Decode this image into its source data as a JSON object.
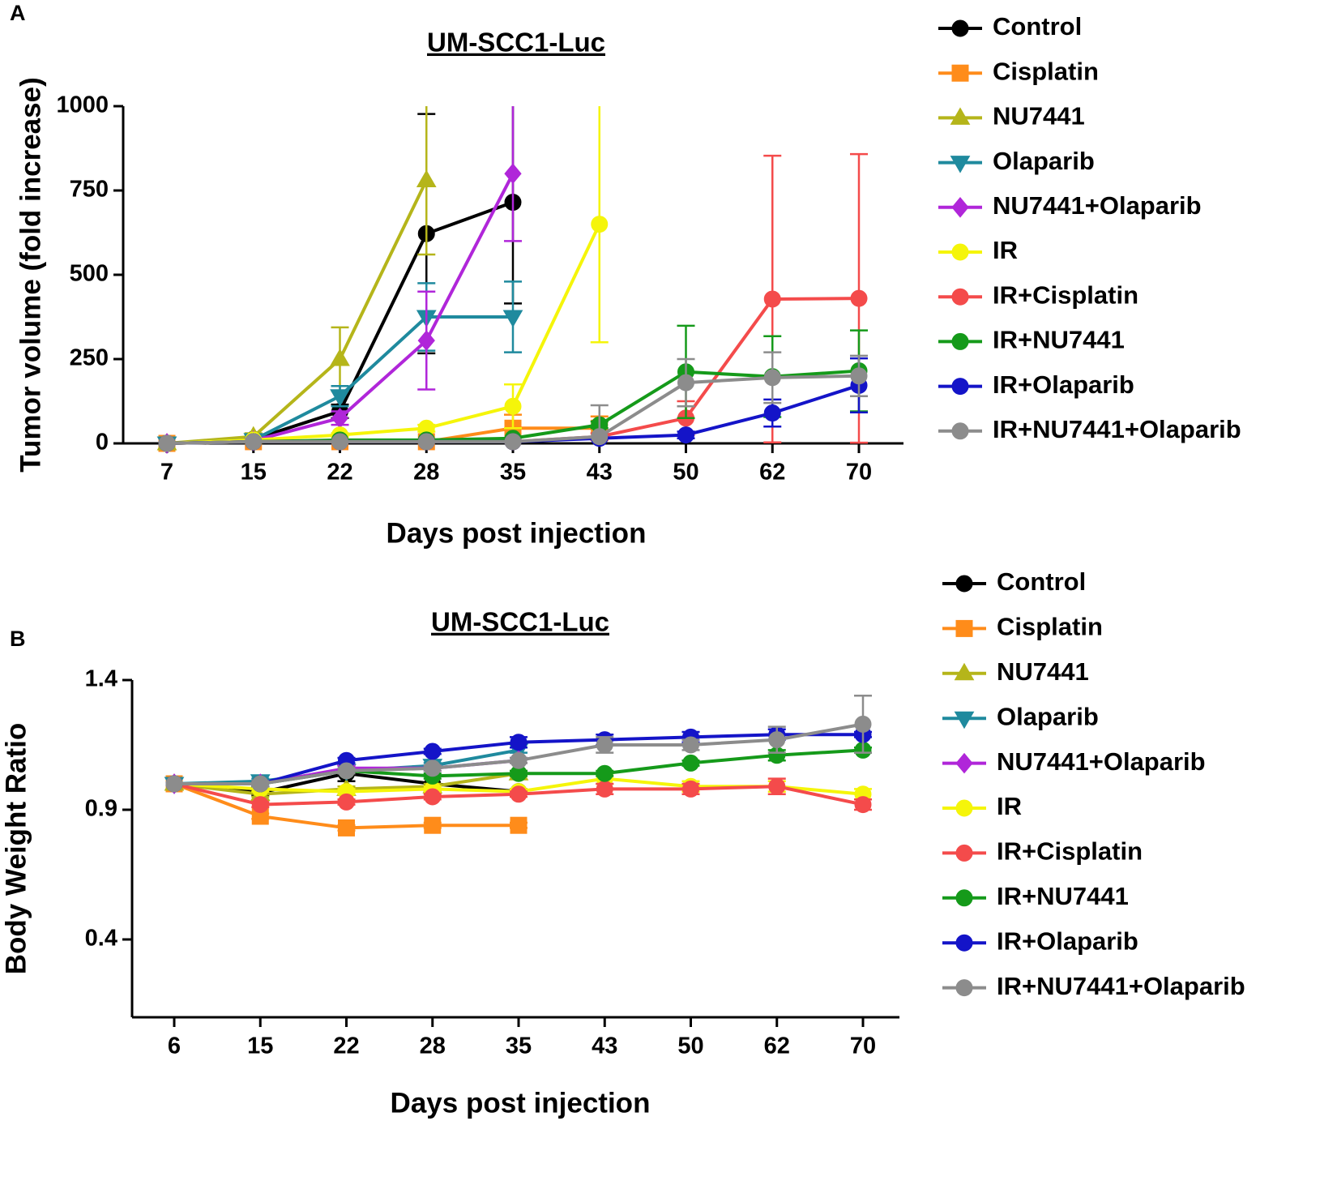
{
  "chart_data": [
    {
      "type": "line",
      "panel": "A",
      "title": "UM-SCC1-Luc",
      "x_label": "Days post injection",
      "y_label": "Tumor volume (fold increase)",
      "categories": [
        "7",
        "15",
        "22",
        "28",
        "35",
        "43",
        "50",
        "62",
        "70"
      ],
      "ylim": [
        0,
        1000
      ],
      "yticks": [
        0,
        250,
        500,
        750,
        1000
      ],
      "legend": "right",
      "series": [
        {
          "name": "Control",
          "color": "#000000",
          "marker": "circle",
          "values": [
            0,
            12,
            95,
            622,
            715,
            null,
            null,
            null,
            null
          ],
          "errors": [
            null,
            5,
            20,
            355,
            300,
            null,
            null,
            null,
            null
          ]
        },
        {
          "name": "Cisplatin",
          "color": "#ff8c1a",
          "marker": "square",
          "values": [
            0,
            5,
            5,
            5,
            45,
            45,
            null,
            null,
            null
          ],
          "errors": [
            null,
            null,
            5,
            5,
            40,
            35,
            null,
            null,
            null
          ]
        },
        {
          "name": "NU7441",
          "color": "#b5b51a",
          "marker": "triangle",
          "values": [
            0,
            20,
            250,
            780,
            null,
            null,
            null,
            null,
            null
          ],
          "errors": [
            null,
            10,
            94,
            220,
            null,
            null,
            null,
            null,
            null
          ]
        },
        {
          "name": "Olaparib",
          "color": "#1f8a9e",
          "marker": "triangle-down",
          "values": [
            0,
            10,
            140,
            375,
            375,
            null,
            null,
            null,
            null
          ],
          "errors": [
            null,
            5,
            30,
            100,
            105,
            null,
            null,
            null,
            null
          ]
        },
        {
          "name": "NU7441+Olaparib",
          "color": "#b026d9",
          "marker": "diamond",
          "values": [
            0,
            8,
            75,
            305,
            800,
            null,
            null,
            null,
            null
          ],
          "errors": [
            null,
            5,
            20,
            145,
            200,
            null,
            null,
            null,
            null
          ]
        },
        {
          "name": "IR",
          "color": "#f5f50a",
          "marker": "circle",
          "values": [
            0,
            10,
            25,
            45,
            110,
            650,
            null,
            null,
            null
          ],
          "errors": [
            null,
            null,
            5,
            10,
            65,
            350,
            null,
            null,
            null
          ]
        },
        {
          "name": "IR+Cisplatin",
          "color": "#f44b4b",
          "marker": "circle",
          "values": [
            0,
            5,
            5,
            5,
            5,
            20,
            75,
            428,
            430
          ],
          "errors": [
            null,
            null,
            null,
            null,
            null,
            10,
            50,
            425,
            428
          ]
        },
        {
          "name": "IR+NU7441",
          "color": "#159a1a",
          "marker": "circle",
          "values": [
            0,
            5,
            10,
            10,
            15,
            55,
            212,
            198,
            215
          ],
          "errors": [
            null,
            null,
            null,
            null,
            null,
            10,
            137,
            120,
            120
          ]
        },
        {
          "name": "IR+Olaparib",
          "color": "#1414c8",
          "marker": "circle",
          "values": [
            0,
            5,
            5,
            5,
            5,
            15,
            25,
            90,
            172
          ],
          "errors": [
            null,
            null,
            null,
            null,
            null,
            null,
            10,
            40,
            80
          ]
        },
        {
          "name": "IR+NU7441+Olaparib",
          "color": "#8c8c8c",
          "marker": "circle",
          "values": [
            0,
            5,
            5,
            5,
            5,
            20,
            180,
            195,
            200
          ],
          "errors": [
            null,
            null,
            null,
            null,
            null,
            93,
            70,
            75,
            60
          ]
        }
      ]
    },
    {
      "type": "line",
      "panel": "B",
      "title": "UM-SCC1-Luc",
      "x_label": "Days post injection",
      "y_label": "Body Weight Ratio",
      "categories": [
        "6",
        "15",
        "22",
        "28",
        "35",
        "43",
        "50",
        "62",
        "70"
      ],
      "ylim": [
        0.1,
        1.4
      ],
      "yticks": [
        0.4,
        0.9,
        1.4
      ],
      "legend": "right",
      "series": [
        {
          "name": "Control",
          "color": "#000000",
          "marker": "circle",
          "values": [
            1.0,
            0.966,
            1.04,
            1.0,
            0.97,
            null,
            null,
            null,
            null
          ],
          "errors": [
            null,
            0.01,
            0.03,
            0.03,
            0.01,
            null,
            null,
            null,
            null
          ]
        },
        {
          "name": "Cisplatin",
          "color": "#ff8c1a",
          "marker": "square",
          "values": [
            1.0,
            0.875,
            0.83,
            0.84,
            0.84,
            null,
            null,
            null,
            null
          ],
          "errors": [
            null,
            0.01,
            0.01,
            0.01,
            0.01,
            null,
            null,
            null,
            null
          ]
        },
        {
          "name": "NU7441",
          "color": "#b5b51a",
          "marker": "triangle",
          "values": [
            1.0,
            0.96,
            0.98,
            0.99,
            1.04,
            null,
            null,
            null,
            null
          ],
          "errors": [
            null,
            0.01,
            0.01,
            0.01,
            0.01,
            null,
            null,
            null,
            null
          ]
        },
        {
          "name": "Olaparib",
          "color": "#1f8a9e",
          "marker": "triangle-down",
          "values": [
            1.0,
            1.01,
            1.05,
            1.07,
            1.13,
            null,
            null,
            null,
            null
          ],
          "errors": [
            null,
            0.01,
            0.01,
            0.01,
            0.01,
            null,
            null,
            null,
            null
          ]
        },
        {
          "name": "NU7441+Olaparib",
          "color": "#b026d9",
          "marker": "diamond",
          "values": [
            1.0,
            1.0,
            1.06,
            1.06,
            1.09,
            null,
            null,
            null,
            null
          ],
          "errors": [
            null,
            0.01,
            0.01,
            0.01,
            0.01,
            null,
            null,
            null,
            null
          ]
        },
        {
          "name": "IR",
          "color": "#f5f50a",
          "marker": "circle",
          "values": [
            1.0,
            0.98,
            0.97,
            0.98,
            0.97,
            1.02,
            0.99,
            0.99,
            0.96
          ],
          "errors": [
            null,
            0.01,
            0.01,
            0.01,
            0.01,
            0.02,
            0.02,
            0.02,
            0.02
          ]
        },
        {
          "name": "IR+Cisplatin",
          "color": "#f44b4b",
          "marker": "circle",
          "values": [
            1.0,
            0.92,
            0.93,
            0.95,
            0.96,
            0.98,
            0.98,
            0.99,
            0.92
          ],
          "errors": [
            null,
            0.01,
            0.01,
            0.01,
            0.01,
            0.02,
            0.02,
            0.03,
            0.02
          ]
        },
        {
          "name": "IR+NU7441",
          "color": "#159a1a",
          "marker": "circle",
          "values": [
            1.0,
            1.0,
            1.05,
            1.03,
            1.04,
            1.04,
            1.08,
            1.11,
            1.13
          ],
          "errors": [
            null,
            0.01,
            0.01,
            0.01,
            0.01,
            0.01,
            0.01,
            0.02,
            0.01
          ]
        },
        {
          "name": "IR+Olaparib",
          "color": "#1414c8",
          "marker": "circle",
          "values": [
            1.0,
            1.0,
            1.09,
            1.125,
            1.16,
            1.17,
            1.18,
            1.19,
            1.19
          ],
          "errors": [
            null,
            0.01,
            0.01,
            0.01,
            0.02,
            0.02,
            0.02,
            0.02,
            0.01
          ]
        },
        {
          "name": "IR+NU7441+Olaparib",
          "color": "#8c8c8c",
          "marker": "circle",
          "values": [
            1.0,
            1.0,
            1.05,
            1.06,
            1.09,
            1.15,
            1.15,
            1.17,
            1.23
          ],
          "errors": [
            null,
            0.01,
            0.01,
            0.01,
            0.01,
            0.03,
            0.02,
            0.05,
            0.11
          ]
        }
      ]
    }
  ]
}
